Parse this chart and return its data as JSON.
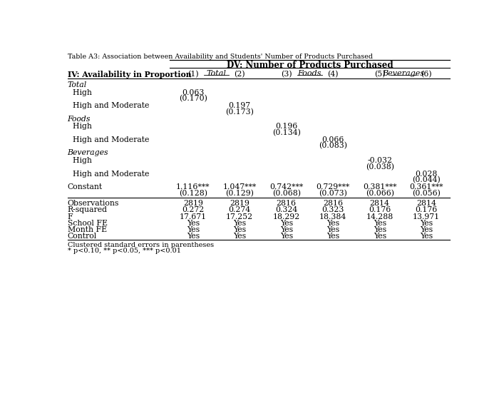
{
  "title_top": "Table A3: Association between Availability and Students' Number of Products Purchased",
  "title_dv": "DV: Number of Products Purchased",
  "col_groups": [
    {
      "label": "Total",
      "span": [
        0,
        1
      ]
    },
    {
      "label": "Foods",
      "span": [
        2,
        3
      ]
    },
    {
      "label": "Beverages",
      "span": [
        4,
        5
      ]
    }
  ],
  "iv_label": "IV: Availability in Proportion",
  "col_numbers": [
    "(1)",
    "(2)",
    "(3)",
    "(4)",
    "(5)",
    "(6)"
  ],
  "rows": [
    {
      "label": "Total",
      "italic": true,
      "section": true,
      "values": [
        "",
        "",
        "",
        "",
        "",
        ""
      ]
    },
    {
      "label": "  High",
      "italic": false,
      "section": false,
      "values": [
        "0.063\n(0.170)",
        "",
        "",
        "",
        "",
        ""
      ]
    },
    {
      "label": "  High and Moderate",
      "italic": false,
      "section": false,
      "values": [
        "",
        "0.197\n(0.173)",
        "",
        "",
        "",
        ""
      ]
    },
    {
      "label": "Foods",
      "italic": true,
      "section": true,
      "values": [
        "",
        "",
        "",
        "",
        "",
        ""
      ]
    },
    {
      "label": "  High",
      "italic": false,
      "section": false,
      "values": [
        "",
        "",
        "0.196\n(0.134)",
        "",
        "",
        ""
      ]
    },
    {
      "label": "  High and Moderate",
      "italic": false,
      "section": false,
      "values": [
        "",
        "",
        "",
        "0.066\n(0.083)",
        "",
        ""
      ]
    },
    {
      "label": "Beverages",
      "italic": true,
      "section": true,
      "values": [
        "",
        "",
        "",
        "",
        "",
        ""
      ]
    },
    {
      "label": "  High",
      "italic": false,
      "section": false,
      "values": [
        "",
        "",
        "",
        "",
        "-0.032\n(0.038)",
        ""
      ]
    },
    {
      "label": "  High and Moderate",
      "italic": false,
      "section": false,
      "values": [
        "",
        "",
        "",
        "",
        "",
        "0.028\n(0.044)"
      ]
    },
    {
      "label": "Constant",
      "italic": false,
      "section": false,
      "values": [
        "1.116***\n(0.128)",
        "1.047***\n(0.129)",
        "0.742***\n(0.068)",
        "0.729***\n(0.073)",
        "0.381***\n(0.066)",
        "0.361***\n(0.056)"
      ]
    }
  ],
  "stats_rows": [
    {
      "label": "Observations",
      "values": [
        "2819",
        "2819",
        "2816",
        "2816",
        "2814",
        "2814"
      ]
    },
    {
      "label": "R-squared",
      "values": [
        "0.272",
        "0.274",
        "0.324",
        "0.323",
        "0.176",
        "0.176"
      ]
    },
    {
      "label": "F",
      "values": [
        "17.671",
        "17.252",
        "18.292",
        "18.384",
        "14.288",
        "13.971"
      ]
    },
    {
      "label": "School FE",
      "values": [
        "Yes",
        "Yes",
        "Yes",
        "Yes",
        "Yes",
        "Yes"
      ]
    },
    {
      "label": "Month FE",
      "values": [
        "Yes",
        "Yes",
        "Yes",
        "Yes",
        "Yes",
        "Yes"
      ]
    },
    {
      "label": "Control",
      "values": [
        "Yes",
        "Yes",
        "Yes",
        "Yes",
        "Yes",
        "Yes"
      ]
    }
  ],
  "footnotes": [
    "Clustered standard errors in parentheses",
    "* p<0.10, ** p<0.05, *** p<0.01"
  ],
  "bg_color": "#ffffff",
  "text_color": "#000000"
}
